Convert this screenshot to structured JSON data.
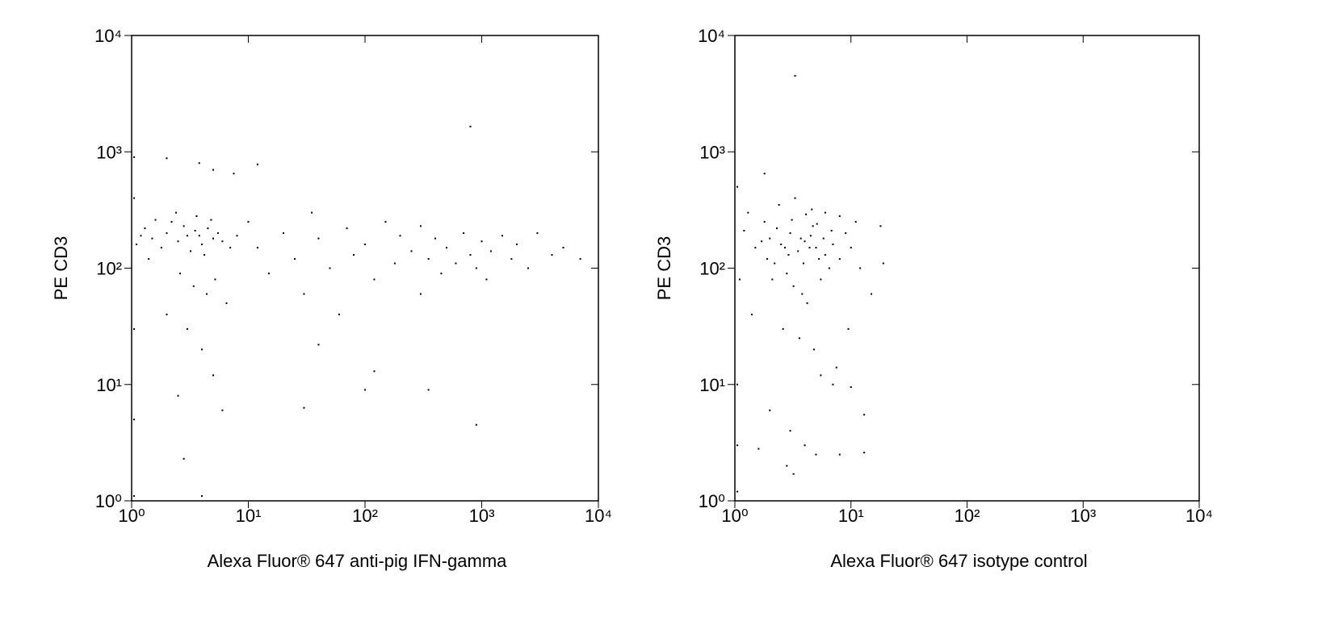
{
  "chart_data": [
    {
      "type": "scatter",
      "xlabel": "Alexa Fluor® 647 anti-pig IFN-gamma",
      "ylabel": "PE CD3",
      "log_x": true,
      "log_y": true,
      "color": "#000000",
      "xlim": [
        1,
        10000
      ],
      "ylim": [
        1,
        10000
      ],
      "xticks": [
        {
          "value": 1,
          "label": "10⁰"
        },
        {
          "value": 10,
          "label": "10¹"
        },
        {
          "value": 100,
          "label": "10²"
        },
        {
          "value": 1000,
          "label": "10³"
        },
        {
          "value": 10000,
          "label": "10⁴"
        }
      ],
      "yticks": [
        {
          "value": 1,
          "label": "10⁰"
        },
        {
          "value": 10,
          "label": "10¹"
        },
        {
          "value": 100,
          "label": "10²"
        },
        {
          "value": 1000,
          "label": "10³"
        },
        {
          "value": 10000,
          "label": "10⁴"
        }
      ],
      "x": [
        1.5,
        2,
        2.5,
        3,
        3.5,
        4,
        4.5,
        5,
        2.2,
        3.2,
        1.8,
        2.8,
        3.8,
        4.2,
        5.5,
        6,
        1.2,
        1.3,
        1.6,
        2.4,
        3.6,
        4.8,
        7,
        8,
        1.1,
        1.4,
        2.6,
        3.4,
        4.4,
        5.2,
        6.5,
        2,
        3,
        4,
        5,
        2.5,
        6,
        1.05,
        1.05,
        1.05,
        1.05,
        2,
        3.8,
        5,
        7.5,
        12,
        4,
        10,
        12,
        15,
        20,
        25,
        30,
        35,
        40,
        50,
        60,
        70,
        80,
        100,
        120,
        150,
        180,
        200,
        250,
        300,
        300,
        350,
        400,
        450,
        500,
        600,
        700,
        800,
        900,
        1000,
        1100,
        1200,
        1500,
        1800,
        2000,
        2500,
        3000,
        4000,
        5000,
        7000,
        800,
        350,
        900,
        30,
        120,
        100,
        40,
        1.05,
        2.8
      ],
      "y": [
        180,
        200,
        170,
        190,
        210,
        160,
        220,
        180,
        250,
        140,
        150,
        230,
        190,
        130,
        200,
        170,
        190,
        220,
        260,
        300,
        280,
        260,
        150,
        190,
        160,
        120,
        90,
        70,
        60,
        80,
        50,
        40,
        30,
        20,
        12,
        8,
        6,
        5,
        30,
        400,
        900,
        880,
        800,
        700,
        650,
        780,
        1.1,
        250,
        150,
        90,
        200,
        120,
        60,
        300,
        180,
        100,
        40,
        220,
        130,
        160,
        80,
        250,
        110,
        190,
        140,
        60,
        230,
        120,
        180,
        90,
        150,
        110,
        200,
        130,
        100,
        170,
        80,
        140,
        190,
        120,
        160,
        100,
        200,
        130,
        150,
        120,
        1650,
        9,
        4.5,
        6.3,
        13,
        9,
        22,
        1.1,
        2.3
      ]
    },
    {
      "type": "scatter",
      "xlabel": "Alexa Fluor® 647 isotype control",
      "ylabel": "PE CD3",
      "log_x": true,
      "log_y": true,
      "color": "#000000",
      "xlim": [
        1,
        10000
      ],
      "ylim": [
        1,
        10000
      ],
      "xticks": [
        {
          "value": 1,
          "label": "10⁰"
        },
        {
          "value": 10,
          "label": "10¹"
        },
        {
          "value": 100,
          "label": "10²"
        },
        {
          "value": 1000,
          "label": "10³"
        },
        {
          "value": 10000,
          "label": "10⁴"
        }
      ],
      "yticks": [
        {
          "value": 1,
          "label": "10⁰"
        },
        {
          "value": 10,
          "label": "10¹"
        },
        {
          "value": 100,
          "label": "10²"
        },
        {
          "value": 1000,
          "label": "10³"
        },
        {
          "value": 10000,
          "label": "10⁴"
        }
      ],
      "x": [
        1.5,
        2,
        2.5,
        3,
        3.5,
        4,
        4.5,
        5,
        6,
        7,
        8,
        1.2,
        1.8,
        2.2,
        2.8,
        3.2,
        3.8,
        4.2,
        5.5,
        6.5,
        9,
        10,
        11,
        12,
        1.3,
        2.4,
        3.3,
        4.6,
        6,
        8,
        1.1,
        1.4,
        2.6,
        3.6,
        4.8,
        5.5,
        7,
        2,
        3,
        4,
        1.6,
        2.8,
        3.2,
        5,
        8,
        13,
        1.05,
        1.05,
        1.05,
        1.05,
        1.8,
        3.3,
        18,
        19,
        15,
        13,
        10,
        7.5,
        9.5,
        2.1,
        2.9,
        3.9,
        4.7,
        5.8,
        6.8,
        1.7,
        2.3,
        3.1,
        4.1,
        5.1,
        1.9,
        2.7,
        3.7,
        4.4,
        5.3
      ],
      "y": [
        150,
        180,
        160,
        200,
        140,
        170,
        190,
        150,
        130,
        160,
        120,
        210,
        250,
        110,
        90,
        70,
        60,
        50,
        80,
        100,
        200,
        150,
        250,
        100,
        300,
        350,
        400,
        320,
        300,
        280,
        80,
        40,
        30,
        25,
        20,
        12,
        10,
        6,
        4,
        3,
        2.8,
        2,
        1.7,
        2.5,
        2.5,
        2.6,
        10,
        3,
        1.2,
        500,
        650,
        4500,
        230,
        110,
        60,
        5.5,
        9.5,
        14,
        30,
        80,
        130,
        110,
        230,
        180,
        210,
        170,
        220,
        260,
        290,
        240,
        120,
        150,
        180,
        150,
        120
      ]
    }
  ]
}
